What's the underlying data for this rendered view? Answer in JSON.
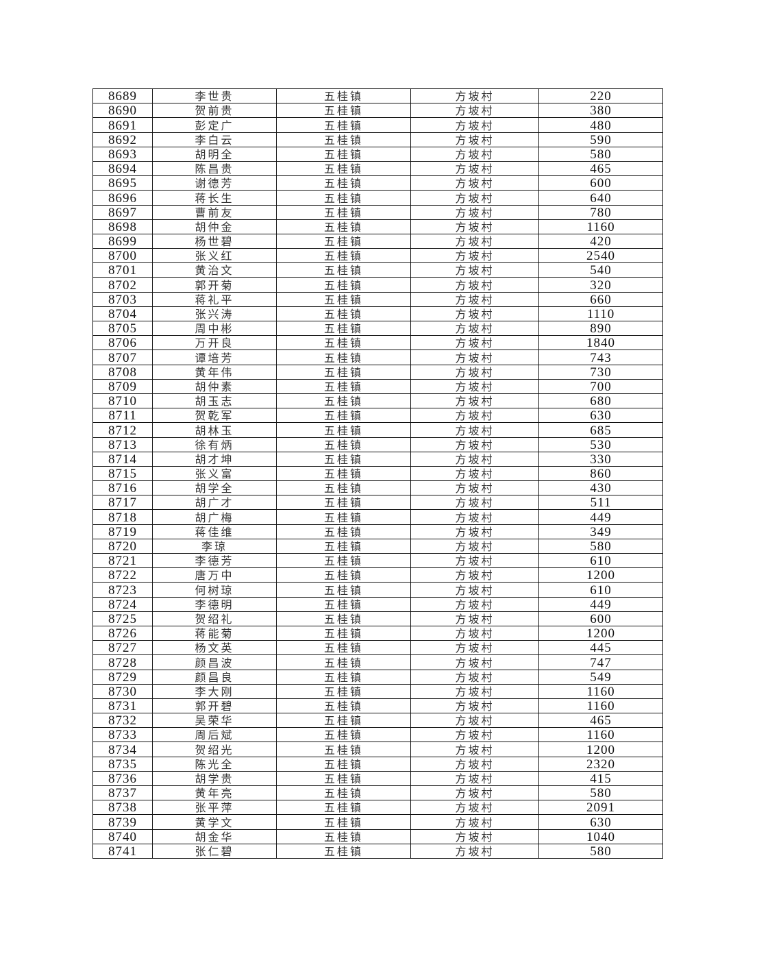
{
  "table": {
    "rows": [
      [
        "8689",
        "李世贵",
        "五桂镇",
        "方坡村",
        "220"
      ],
      [
        "8690",
        "贺前贵",
        "五桂镇",
        "方坡村",
        "380"
      ],
      [
        "8691",
        "彭定广",
        "五桂镇",
        "方坡村",
        "480"
      ],
      [
        "8692",
        "李白云",
        "五桂镇",
        "方坡村",
        "590"
      ],
      [
        "8693",
        "胡明全",
        "五桂镇",
        "方坡村",
        "580"
      ],
      [
        "8694",
        "陈昌贵",
        "五桂镇",
        "方坡村",
        "465"
      ],
      [
        "8695",
        "谢德芳",
        "五桂镇",
        "方坡村",
        "600"
      ],
      [
        "8696",
        "蒋长生",
        "五桂镇",
        "方坡村",
        "640"
      ],
      [
        "8697",
        "曹前友",
        "五桂镇",
        "方坡村",
        "780"
      ],
      [
        "8698",
        "胡仲金",
        "五桂镇",
        "方坡村",
        "1160"
      ],
      [
        "8699",
        "杨世碧",
        "五桂镇",
        "方坡村",
        "420"
      ],
      [
        "8700",
        "张义红",
        "五桂镇",
        "方坡村",
        "2540"
      ],
      [
        "8701",
        "黄治文",
        "五桂镇",
        "方坡村",
        "540"
      ],
      [
        "8702",
        "郭开菊",
        "五桂镇",
        "方坡村",
        "320"
      ],
      [
        "8703",
        "蒋礼平",
        "五桂镇",
        "方坡村",
        "660"
      ],
      [
        "8704",
        "张兴涛",
        "五桂镇",
        "方坡村",
        "1110"
      ],
      [
        "8705",
        "周中彬",
        "五桂镇",
        "方坡村",
        "890"
      ],
      [
        "8706",
        "万开良",
        "五桂镇",
        "方坡村",
        "1840"
      ],
      [
        "8707",
        "谭培芳",
        "五桂镇",
        "方坡村",
        "743"
      ],
      [
        "8708",
        "黄年伟",
        "五桂镇",
        "方坡村",
        "730"
      ],
      [
        "8709",
        "胡仲素",
        "五桂镇",
        "方坡村",
        "700"
      ],
      [
        "8710",
        "胡玉志",
        "五桂镇",
        "方坡村",
        "680"
      ],
      [
        "8711",
        "贺乾军",
        "五桂镇",
        "方坡村",
        "630"
      ],
      [
        "8712",
        "胡林玉",
        "五桂镇",
        "方坡村",
        "685"
      ],
      [
        "8713",
        "徐有炳",
        "五桂镇",
        "方坡村",
        "530"
      ],
      [
        "8714",
        "胡才坤",
        "五桂镇",
        "方坡村",
        "330"
      ],
      [
        "8715",
        "张义富",
        "五桂镇",
        "方坡村",
        "860"
      ],
      [
        "8716",
        "胡学全",
        "五桂镇",
        "方坡村",
        "430"
      ],
      [
        "8717",
        "胡广才",
        "五桂镇",
        "方坡村",
        "511"
      ],
      [
        "8718",
        "胡广梅",
        "五桂镇",
        "方坡村",
        "449"
      ],
      [
        "8719",
        "蒋佳维",
        "五桂镇",
        "方坡村",
        "349"
      ],
      [
        "8720",
        "李琼",
        "五桂镇",
        "方坡村",
        "580"
      ],
      [
        "8721",
        "李德芳",
        "五桂镇",
        "方坡村",
        "610"
      ],
      [
        "8722",
        "唐万中",
        "五桂镇",
        "方坡村",
        "1200"
      ],
      [
        "8723",
        "何树琼",
        "五桂镇",
        "方坡村",
        "610"
      ],
      [
        "8724",
        "李德明",
        "五桂镇",
        "方坡村",
        "449"
      ],
      [
        "8725",
        "贺绍礼",
        "五桂镇",
        "方坡村",
        "600"
      ],
      [
        "8726",
        "蒋能菊",
        "五桂镇",
        "方坡村",
        "1200"
      ],
      [
        "8727",
        "杨文英",
        "五桂镇",
        "方坡村",
        "445"
      ],
      [
        "8728",
        "颜昌波",
        "五桂镇",
        "方坡村",
        "747"
      ],
      [
        "8729",
        "颜昌良",
        "五桂镇",
        "方坡村",
        "549"
      ],
      [
        "8730",
        "李大刚",
        "五桂镇",
        "方坡村",
        "1160"
      ],
      [
        "8731",
        "郭开碧",
        "五桂镇",
        "方坡村",
        "1160"
      ],
      [
        "8732",
        "吴荣华",
        "五桂镇",
        "方坡村",
        "465"
      ],
      [
        "8733",
        "周后斌",
        "五桂镇",
        "方坡村",
        "1160"
      ],
      [
        "8734",
        "贺绍光",
        "五桂镇",
        "方坡村",
        "1200"
      ],
      [
        "8735",
        "陈光全",
        "五桂镇",
        "方坡村",
        "2320"
      ],
      [
        "8736",
        "胡学贵",
        "五桂镇",
        "方坡村",
        "415"
      ],
      [
        "8737",
        "黄年亮",
        "五桂镇",
        "方坡村",
        "580"
      ],
      [
        "8738",
        "张平萍",
        "五桂镇",
        "方坡村",
        "2091"
      ],
      [
        "8739",
        "黄学文",
        "五桂镇",
        "方坡村",
        "630"
      ],
      [
        "8740",
        "胡金华",
        "五桂镇",
        "方坡村",
        "1040"
      ],
      [
        "8741",
        "张仁碧",
        "五桂镇",
        "方坡村",
        "580"
      ]
    ]
  }
}
